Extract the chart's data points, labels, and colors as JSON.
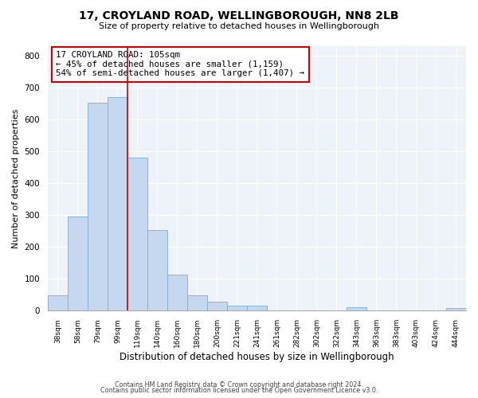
{
  "title": "17, CROYLAND ROAD, WELLINGBOROUGH, NN8 2LB",
  "subtitle": "Size of property relative to detached houses in Wellingborough",
  "xlabel": "Distribution of detached houses by size in Wellingborough",
  "ylabel": "Number of detached properties",
  "bar_labels": [
    "38sqm",
    "58sqm",
    "79sqm",
    "99sqm",
    "119sqm",
    "140sqm",
    "160sqm",
    "180sqm",
    "200sqm",
    "221sqm",
    "241sqm",
    "261sqm",
    "282sqm",
    "302sqm",
    "322sqm",
    "343sqm",
    "363sqm",
    "383sqm",
    "403sqm",
    "424sqm",
    "444sqm"
  ],
  "bar_heights": [
    48,
    295,
    652,
    668,
    480,
    253,
    113,
    48,
    28,
    15,
    15,
    0,
    0,
    0,
    0,
    10,
    0,
    0,
    0,
    0,
    8
  ],
  "bar_color": "#c5d8f0",
  "bar_edge_color": "#7badd4",
  "vline_x": 3.5,
  "vline_color": "#cc0000",
  "annotation_title": "17 CROYLAND ROAD: 105sqm",
  "annotation_line1": "← 45% of detached houses are smaller (1,159)",
  "annotation_line2": "54% of semi-detached houses are larger (1,407) →",
  "annotation_box_color": "#ffffff",
  "annotation_box_edge": "#cc0000",
  "ylim": [
    0,
    830
  ],
  "footer1": "Contains HM Land Registry data © Crown copyright and database right 2024.",
  "footer2": "Contains public sector information licensed under the Open Government Licence v3.0.",
  "background_color": "#ffffff",
  "plot_background": "#eef2f9"
}
